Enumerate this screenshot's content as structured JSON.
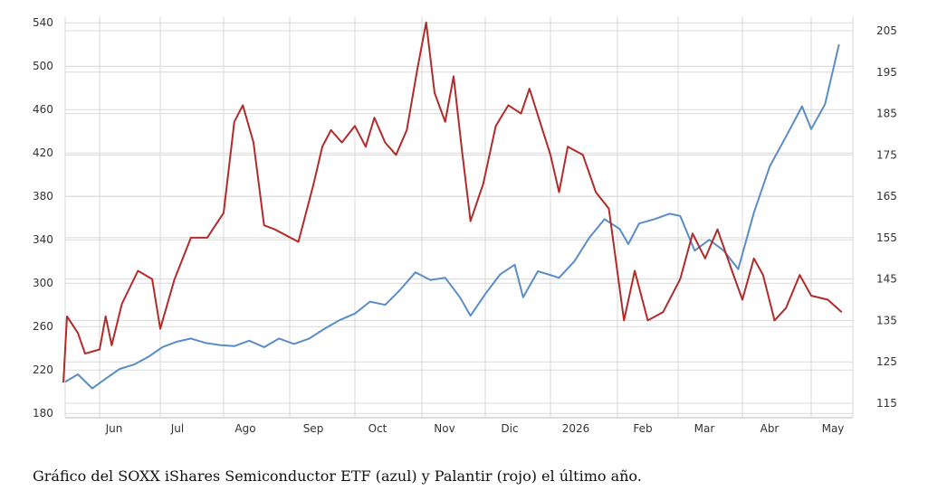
{
  "caption": "Gráfico del SOXX iShares Semiconductor ETF (azul) y Palantir (rojo) el último año.",
  "colors": {
    "soxx": "#5a8cc6",
    "pltr": "#b22b2b",
    "grid": "#d9d9d9"
  },
  "chart_data": {
    "type": "line",
    "x_labels": [
      "Jun",
      "Jul",
      "Ago",
      "Sep",
      "Oct",
      "Nov",
      "Dic",
      "2026",
      "Feb",
      "Mar",
      "Abr",
      "May"
    ],
    "left_axis": {
      "ticks": [
        180,
        220,
        260,
        300,
        340,
        380,
        420,
        460,
        500,
        540
      ],
      "ylim": [
        176,
        546
      ]
    },
    "right_axis": {
      "ticks": [
        115,
        125,
        135,
        145,
        155,
        165,
        175,
        185,
        195,
        205
      ],
      "ylim": [
        111.5,
        208.5
      ]
    },
    "grid": true,
    "series": [
      {
        "key": "soxx",
        "axis": "left",
        "points": [
          [
            "2025-05-13",
            209
          ],
          [
            "2025-05-20",
            216
          ],
          [
            "2025-05-28",
            203
          ],
          [
            "2025-06-04",
            212
          ],
          [
            "2025-06-11",
            221
          ],
          [
            "2025-06-18",
            225
          ],
          [
            "2025-06-25",
            232
          ],
          [
            "2025-07-02",
            241
          ],
          [
            "2025-07-09",
            246
          ],
          [
            "2025-07-16",
            249
          ],
          [
            "2025-07-23",
            245
          ],
          [
            "2025-07-30",
            243
          ],
          [
            "2025-08-06",
            242
          ],
          [
            "2025-08-13",
            247
          ],
          [
            "2025-08-20",
            241
          ],
          [
            "2025-08-27",
            249
          ],
          [
            "2025-09-03",
            244
          ],
          [
            "2025-09-10",
            249
          ],
          [
            "2025-09-17",
            258
          ],
          [
            "2025-09-24",
            266
          ],
          [
            "2025-10-01",
            272
          ],
          [
            "2025-10-08",
            283
          ],
          [
            "2025-10-15",
            280
          ],
          [
            "2025-10-22",
            294
          ],
          [
            "2025-10-29",
            310
          ],
          [
            "2025-11-05",
            303
          ],
          [
            "2025-11-12",
            305
          ],
          [
            "2025-11-19",
            287
          ],
          [
            "2025-11-24",
            270
          ],
          [
            "2025-12-01",
            290
          ],
          [
            "2025-12-08",
            308
          ],
          [
            "2025-12-15",
            317
          ],
          [
            "2025-12-19",
            287
          ],
          [
            "2025-12-26",
            311
          ],
          [
            "2026-01-05",
            305
          ],
          [
            "2026-01-12",
            320
          ],
          [
            "2026-01-19",
            342
          ],
          [
            "2026-01-26",
            359
          ],
          [
            "2026-02-02",
            350
          ],
          [
            "2026-02-06",
            336
          ],
          [
            "2026-02-11",
            355
          ],
          [
            "2026-02-18",
            359
          ],
          [
            "2026-02-25",
            364
          ],
          [
            "2026-03-02",
            362
          ],
          [
            "2026-03-09",
            330
          ],
          [
            "2026-03-16",
            340
          ],
          [
            "2026-03-23",
            330
          ],
          [
            "2026-03-30",
            313
          ],
          [
            "2026-04-06",
            365
          ],
          [
            "2026-04-13",
            408
          ],
          [
            "2026-04-20",
            435
          ],
          [
            "2026-04-27",
            463
          ],
          [
            "2026-05-01",
            442
          ],
          [
            "2026-05-06",
            465
          ],
          [
            "2026-05-11",
            520
          ]
        ]
      },
      {
        "key": "pltr",
        "axis": "right",
        "points": [
          [
            "2025-05-12",
            120
          ],
          [
            "2025-05-14",
            136
          ],
          [
            "2025-05-20",
            132
          ],
          [
            "2025-05-24",
            127
          ],
          [
            "2025-06-01",
            128
          ],
          [
            "2025-06-04",
            136
          ],
          [
            "2025-06-07",
            129
          ],
          [
            "2025-06-12",
            139
          ],
          [
            "2025-06-20",
            147
          ],
          [
            "2025-06-27",
            145
          ],
          [
            "2025-07-01",
            133
          ],
          [
            "2025-07-08",
            145
          ],
          [
            "2025-07-16",
            155
          ],
          [
            "2025-07-24",
            155
          ],
          [
            "2025-08-01",
            161
          ],
          [
            "2025-08-06",
            183
          ],
          [
            "2025-08-10",
            187
          ],
          [
            "2025-08-15",
            178
          ],
          [
            "2025-08-20",
            158
          ],
          [
            "2025-08-25",
            157
          ],
          [
            "2025-09-05",
            154
          ],
          [
            "2025-09-12",
            168
          ],
          [
            "2025-09-16",
            177
          ],
          [
            "2025-09-20",
            181
          ],
          [
            "2025-09-25",
            178
          ],
          [
            "2025-10-01",
            182
          ],
          [
            "2025-10-06",
            177
          ],
          [
            "2025-10-10",
            184
          ],
          [
            "2025-10-15",
            178
          ],
          [
            "2025-10-20",
            175
          ],
          [
            "2025-10-25",
            181
          ],
          [
            "2025-10-30",
            196
          ],
          [
            "2025-11-03",
            207
          ],
          [
            "2025-11-07",
            190
          ],
          [
            "2025-11-12",
            183
          ],
          [
            "2025-11-16",
            194
          ],
          [
            "2025-11-20",
            176
          ],
          [
            "2025-11-24",
            159
          ],
          [
            "2025-11-30",
            168
          ],
          [
            "2025-12-06",
            182
          ],
          [
            "2025-12-12",
            187
          ],
          [
            "2025-12-18",
            185
          ],
          [
            "2025-12-22",
            191
          ],
          [
            "2026-01-01",
            175
          ],
          [
            "2026-01-05",
            166
          ],
          [
            "2026-01-09",
            177
          ],
          [
            "2026-01-16",
            175
          ],
          [
            "2026-01-22",
            166
          ],
          [
            "2026-01-28",
            162
          ],
          [
            "2026-02-04",
            135
          ],
          [
            "2026-02-09",
            147
          ],
          [
            "2026-02-15",
            135
          ],
          [
            "2026-02-22",
            137
          ],
          [
            "2026-03-02",
            145
          ],
          [
            "2026-03-08",
            156
          ],
          [
            "2026-03-14",
            150
          ],
          [
            "2026-03-20",
            157
          ],
          [
            "2026-03-27",
            147
          ],
          [
            "2026-04-01",
            140
          ],
          [
            "2026-04-06",
            150
          ],
          [
            "2026-04-10",
            146
          ],
          [
            "2026-04-15",
            135
          ],
          [
            "2026-04-20",
            138
          ],
          [
            "2026-04-26",
            146
          ],
          [
            "2026-05-01",
            141
          ],
          [
            "2026-05-07",
            140
          ],
          [
            "2026-05-12",
            137
          ]
        ]
      }
    ]
  }
}
